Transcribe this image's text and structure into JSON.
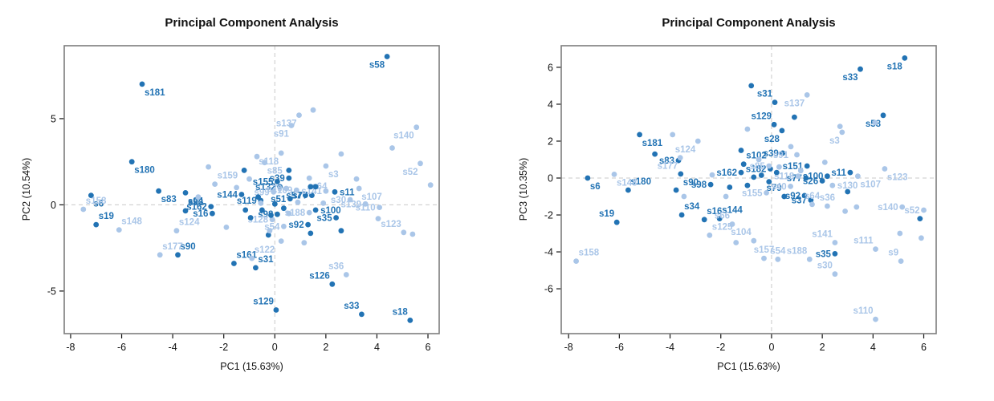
{
  "colors": {
    "dark": "#2273b4",
    "light": "#aac6e8",
    "box": "#7d7d7d",
    "guide": "#c9c9c9",
    "tick": "#111111"
  },
  "chart_data": [
    {
      "type": "scatter",
      "title": "Principal Component Analysis",
      "xlabel": "PC1 (15.63%)",
      "ylabel": "PC2 (10.54%)",
      "x_range": [
        -8.25,
        6.44
      ],
      "y_range": [
        -7.47,
        9.23
      ],
      "x_ticks": [
        -8,
        -6,
        -4,
        -2,
        0,
        2,
        4,
        6
      ],
      "y_ticks": [
        -5,
        0,
        5
      ],
      "guides": {
        "x": 0,
        "y": 0
      },
      "grid": "zero-lines-dashed",
      "legend": "none",
      "points": [
        [
          4.4,
          8.6,
          "d",
          "s58",
          "bl"
        ],
        [
          -5.2,
          7.0,
          "d",
          "s181",
          "br"
        ],
        [
          -5.6,
          2.5,
          "d",
          "s180",
          "br"
        ],
        [
          -7.2,
          0.55,
          "d",
          "s6",
          "br"
        ],
        [
          -7.0,
          -1.15,
          "d",
          "s19",
          "ar"
        ],
        [
          -4.55,
          0.8,
          "d",
          "s83",
          "br"
        ],
        [
          -3.5,
          0.7,
          "d",
          "s94",
          "br"
        ],
        [
          -3.5,
          -0.35,
          "d",
          "s93",
          "ar"
        ],
        [
          -3.8,
          -2.9,
          "d",
          "s90",
          "ar"
        ],
        [
          -2.45,
          -0.5,
          "d",
          "s16",
          "l"
        ],
        [
          -2.5,
          -0.1,
          "d",
          "s162",
          "l"
        ],
        [
          -1.3,
          0.6,
          "d",
          "s144",
          "l"
        ],
        [
          -0.55,
          0.25,
          "d",
          "s119",
          "l"
        ],
        [
          0.6,
          0.35,
          "d",
          "s51",
          "l"
        ],
        [
          0.1,
          1.35,
          "d",
          "s155",
          "l"
        ],
        [
          0.2,
          1.05,
          "d",
          "s132",
          "l"
        ],
        [
          0.55,
          1.55,
          "d",
          "s39",
          "l"
        ],
        [
          1.2,
          0.55,
          "d",
          "s57",
          "l"
        ],
        [
          1.45,
          0.55,
          "d",
          "s77",
          "l"
        ],
        [
          2.35,
          0.75,
          "d",
          "s11",
          "r"
        ],
        [
          1.6,
          -0.3,
          "d",
          "s100",
          "r"
        ],
        [
          2.4,
          -0.75,
          "d",
          "s35",
          "l"
        ],
        [
          1.3,
          -1.15,
          "d",
          "s92",
          "l"
        ],
        [
          0.1,
          -0.55,
          "d",
          "s98",
          "l"
        ],
        [
          -1.6,
          -3.4,
          "d",
          "s161",
          "ar"
        ],
        [
          -0.75,
          -3.65,
          "d",
          "s31",
          "ar"
        ],
        [
          0.05,
          -6.1,
          "d",
          "s129",
          "al"
        ],
        [
          2.25,
          -4.6,
          "d",
          "s126",
          "al"
        ],
        [
          3.4,
          -6.35,
          "d",
          "s33",
          "al"
        ],
        [
          5.3,
          -6.7,
          "d",
          "s18",
          "al"
        ],
        [
          -7.5,
          -0.26,
          "l",
          "s158",
          "ar"
        ],
        [
          -6.1,
          -1.45,
          "l",
          "s148",
          "ar"
        ],
        [
          -3.85,
          -1.5,
          "l",
          "s124",
          "ar"
        ],
        [
          -4.5,
          -2.9,
          "l",
          "s177",
          "ar"
        ],
        [
          -2.35,
          1.2,
          "l",
          "s159",
          "ar"
        ],
        [
          0.25,
          3.0,
          "l",
          "s118",
          "bl"
        ],
        [
          -0.4,
          2.45,
          "l",
          "s85",
          "br"
        ],
        [
          0.95,
          5.2,
          "l",
          "s137",
          "bl"
        ],
        [
          0.65,
          4.6,
          "l",
          "s91",
          "bl"
        ],
        [
          5.55,
          4.5,
          "l",
          "s140",
          "bl"
        ],
        [
          5.7,
          2.4,
          "l",
          "s52",
          "bl"
        ],
        [
          2.0,
          2.25,
          "l",
          "s3",
          "br"
        ],
        [
          1.35,
          1.55,
          "l",
          "s64",
          "br"
        ],
        [
          3.3,
          0.95,
          "l",
          "s107",
          "br"
        ],
        [
          3.55,
          0.05,
          "l",
          "s139",
          "l"
        ],
        [
          4.1,
          -0.15,
          "l",
          "s110",
          "l"
        ],
        [
          2.0,
          0.8,
          "l",
          "s141",
          "l"
        ],
        [
          2.95,
          0.3,
          "l",
          "s30",
          "l"
        ],
        [
          1.35,
          -0.45,
          "l",
          "s188",
          "l"
        ],
        [
          0.35,
          -1.25,
          "l",
          "s54",
          "l"
        ],
        [
          -0.1,
          -0.85,
          "l",
          "s128",
          "l"
        ],
        [
          -0.9,
          -3.1,
          "l",
          "s122",
          "ar"
        ],
        [
          2.8,
          -4.05,
          "l",
          "s36",
          "al"
        ],
        [
          5.05,
          -1.6,
          "l",
          "s123",
          "al"
        ],
        [
          0.45,
          0.95,
          "l",
          "s70",
          "l"
        ],
        [
          0.85,
          0.85,
          "l",
          "s109",
          "l"
        ],
        [
          -0.05,
          0.75,
          "l",
          "s99",
          "l"
        ],
        [
          -1.2,
          2.0,
          "d",
          "",
          ""
        ],
        [
          0.55,
          2.0,
          "d",
          "",
          ""
        ],
        [
          1.4,
          1.05,
          "d",
          "",
          ""
        ],
        [
          1.6,
          1.05,
          "d",
          "",
          ""
        ],
        [
          -0.5,
          -0.3,
          "d",
          "",
          ""
        ],
        [
          -0.15,
          -0.6,
          "d",
          "",
          ""
        ],
        [
          -0.95,
          -0.75,
          "d",
          "",
          ""
        ],
        [
          2.6,
          -1.5,
          "d",
          "",
          ""
        ],
        [
          -0.25,
          -1.75,
          "d",
          "",
          ""
        ],
        [
          1.4,
          -1.65,
          "d",
          "",
          ""
        ],
        [
          -1.15,
          -0.3,
          "d",
          "",
          ""
        ],
        [
          0.0,
          0.05,
          "d",
          "",
          ""
        ],
        [
          0.35,
          -0.2,
          "d",
          "",
          ""
        ],
        [
          -0.65,
          0.45,
          "d",
          "",
          ""
        ],
        [
          -0.7,
          2.8,
          "l",
          "",
          ""
        ],
        [
          1.5,
          5.5,
          "l",
          "",
          ""
        ],
        [
          2.6,
          2.95,
          "l",
          "",
          ""
        ],
        [
          3.2,
          1.5,
          "l",
          "",
          ""
        ],
        [
          4.6,
          3.3,
          "l",
          "",
          ""
        ],
        [
          6.1,
          1.15,
          "l",
          "",
          ""
        ],
        [
          -2.6,
          2.2,
          "l",
          "",
          ""
        ],
        [
          -1.5,
          1.0,
          "l",
          "",
          ""
        ],
        [
          -3.0,
          0.45,
          "l",
          "",
          ""
        ],
        [
          -1.9,
          -1.3,
          "l",
          "",
          ""
        ],
        [
          1.15,
          -2.2,
          "l",
          "",
          ""
        ],
        [
          0.25,
          -2.1,
          "l",
          "",
          ""
        ],
        [
          4.05,
          -0.8,
          "l",
          "",
          ""
        ],
        [
          5.4,
          -1.7,
          "l",
          "",
          ""
        ],
        [
          -0.55,
          0.1,
          "l",
          "",
          ""
        ],
        [
          0.9,
          0.15,
          "l",
          "",
          ""
        ],
        [
          1.9,
          0.1,
          "l",
          "",
          ""
        ],
        [
          0.55,
          -0.5,
          "l",
          "",
          ""
        ],
        [
          -0.2,
          -1.5,
          "l",
          "",
          ""
        ],
        [
          -1.0,
          1.5,
          "l",
          "",
          ""
        ]
      ]
    },
    {
      "type": "scatter",
      "title": "Principal Component Analysis",
      "xlabel": "PC1 (15.63%)",
      "ylabel": "PC3 (10.35%)",
      "x_range": [
        -8.29,
        6.49
      ],
      "y_range": [
        -8.43,
        7.17
      ],
      "x_ticks": [
        -8,
        -6,
        -4,
        -2,
        0,
        2,
        4,
        6
      ],
      "y_ticks": [
        -6,
        -4,
        -2,
        0,
        2,
        4,
        6
      ],
      "guides": {
        "x": 0,
        "y": 0
      },
      "grid": "zero-lines-dashed",
      "legend": "none",
      "points": [
        [
          5.25,
          6.5,
          "d",
          "s18",
          "bl"
        ],
        [
          3.5,
          5.9,
          "d",
          "s33",
          "bl"
        ],
        [
          0.13,
          4.1,
          "d",
          "s31",
          "al"
        ],
        [
          0.1,
          2.9,
          "d",
          "s129",
          "al"
        ],
        [
          4.4,
          3.4,
          "d",
          "s58",
          "bl"
        ],
        [
          -5.2,
          2.35,
          "d",
          "s181",
          "br"
        ],
        [
          -3.67,
          0.95,
          "d",
          "s83",
          "l"
        ],
        [
          -5.65,
          -0.65,
          "d",
          "s180",
          "ar"
        ],
        [
          -7.25,
          0.0,
          "d",
          "s6",
          "br"
        ],
        [
          -6.1,
          -2.4,
          "d",
          "s19",
          "al"
        ],
        [
          -3.58,
          0.22,
          "d",
          "s90",
          "br"
        ],
        [
          -2.4,
          -0.35,
          "d",
          "s98",
          "l"
        ],
        [
          -3.54,
          -2.0,
          "d",
          "s34",
          "ar"
        ],
        [
          -2.65,
          -2.25,
          "d",
          "s16",
          "ar"
        ],
        [
          -2.05,
          -2.2,
          "d",
          "s144",
          "ar"
        ],
        [
          -1.2,
          0.3,
          "d",
          "s162",
          "l"
        ],
        [
          -1.1,
          0.75,
          "d",
          "s102",
          "ar"
        ],
        [
          -0.05,
          0.5,
          "d",
          "s182",
          "l"
        ],
        [
          0.44,
          1.35,
          "d",
          "s39",
          "l"
        ],
        [
          0.41,
          2.57,
          "d",
          "s28",
          "bl"
        ],
        [
          0.5,
          -1.0,
          "d",
          "s79",
          "al"
        ],
        [
          1.4,
          0.65,
          "d",
          "s151",
          "l"
        ],
        [
          1.36,
          0.0,
          "d",
          "s77",
          "l"
        ],
        [
          2.2,
          0.1,
          "d",
          "s100",
          "l"
        ],
        [
          3.1,
          0.3,
          "d",
          "s11",
          "l"
        ],
        [
          2.0,
          -0.15,
          "d",
          "s26",
          "l"
        ],
        [
          1.3,
          -0.95,
          "d",
          "s92",
          "l"
        ],
        [
          1.55,
          -1.2,
          "d",
          "s37",
          "l"
        ],
        [
          2.5,
          -4.1,
          "d",
          "s35",
          "l"
        ],
        [
          -7.7,
          -4.5,
          "l",
          "s158",
          "ar"
        ],
        [
          -6.2,
          0.2,
          "l",
          "s148",
          "br"
        ],
        [
          -2.9,
          2.0,
          "l",
          "s124",
          "bl"
        ],
        [
          -3.6,
          1.1,
          "l",
          "s177",
          "bl"
        ],
        [
          1.4,
          4.5,
          "l",
          "s137",
          "bl"
        ],
        [
          2.78,
          2.48,
          "l",
          "s3",
          "bl"
        ],
        [
          4.46,
          0.5,
          "l",
          "s123",
          "br"
        ],
        [
          2.4,
          -0.4,
          "l",
          "s130",
          "r"
        ],
        [
          3.4,
          0.1,
          "l",
          "s107",
          "br"
        ],
        [
          0.76,
          1.7,
          "l",
          "s91",
          "bl"
        ],
        [
          0.75,
          -0.45,
          "l",
          "s40",
          "l"
        ],
        [
          -0.2,
          -0.8,
          "l",
          "s155",
          "l"
        ],
        [
          -0.1,
          0.65,
          "l",
          "s85",
          "l"
        ],
        [
          1.05,
          0.1,
          "l",
          "s118",
          "l"
        ],
        [
          1.6,
          -1.43,
          "l",
          "s64",
          "a"
        ],
        [
          2.2,
          -1.52,
          "l",
          "s36",
          "a"
        ],
        [
          -0.7,
          -3.4,
          "l",
          "s104",
          "al"
        ],
        [
          -2.44,
          -3.1,
          "l",
          "s125",
          "ar"
        ],
        [
          -1.55,
          -2.5,
          "l",
          "s66",
          "al"
        ],
        [
          -0.3,
          -4.35,
          "l",
          "s157",
          "a"
        ],
        [
          0.25,
          -4.4,
          "l",
          "s54",
          "a"
        ],
        [
          1.5,
          -4.4,
          "l",
          "s188",
          "al"
        ],
        [
          2.5,
          -3.5,
          "l",
          "s141",
          "al"
        ],
        [
          4.1,
          -3.85,
          "l",
          "s111",
          "al"
        ],
        [
          5.1,
          -4.5,
          "l",
          "s9",
          "al"
        ],
        [
          2.5,
          -5.2,
          "l",
          "s30",
          "al"
        ],
        [
          4.1,
          -7.65,
          "l",
          "s110",
          "al"
        ],
        [
          5.15,
          -1.57,
          "l",
          "s140",
          "l"
        ],
        [
          6.0,
          -1.74,
          "l",
          "s52",
          "l"
        ],
        [
          -0.8,
          5.0,
          "d",
          "",
          ""
        ],
        [
          0.9,
          3.3,
          "d",
          "",
          ""
        ],
        [
          -4.6,
          1.3,
          "d",
          "",
          ""
        ],
        [
          -3.76,
          -0.65,
          "d",
          "",
          ""
        ],
        [
          -0.95,
          -0.4,
          "d",
          "",
          ""
        ],
        [
          -1.65,
          -0.5,
          "d",
          "",
          ""
        ],
        [
          -1.2,
          1.5,
          "d",
          "",
          ""
        ],
        [
          3.0,
          -0.74,
          "d",
          "",
          ""
        ],
        [
          5.85,
          -2.2,
          "d",
          "",
          ""
        ],
        [
          -0.4,
          0.15,
          "d",
          "",
          ""
        ],
        [
          -0.1,
          -0.2,
          "d",
          "",
          ""
        ],
        [
          0.2,
          0.3,
          "d",
          "",
          ""
        ],
        [
          -0.7,
          0.05,
          "d",
          "",
          ""
        ],
        [
          -0.95,
          2.65,
          "l",
          "",
          ""
        ],
        [
          2.7,
          2.8,
          "l",
          "",
          ""
        ],
        [
          4.08,
          3.0,
          "l",
          "",
          ""
        ],
        [
          -3.9,
          2.35,
          "l",
          "",
          ""
        ],
        [
          1.0,
          1.26,
          "l",
          "",
          ""
        ],
        [
          2.1,
          0.85,
          "l",
          "",
          ""
        ],
        [
          3.35,
          -1.57,
          "l",
          "",
          ""
        ],
        [
          2.9,
          -1.8,
          "l",
          "",
          ""
        ],
        [
          5.9,
          -3.25,
          "l",
          "",
          ""
        ],
        [
          5.06,
          -3.0,
          "l",
          "",
          ""
        ],
        [
          -1.4,
          -3.5,
          "l",
          "",
          ""
        ],
        [
          -3.45,
          -1.0,
          "l",
          "",
          ""
        ],
        [
          -1.8,
          -1.0,
          "l",
          "",
          ""
        ],
        [
          0.3,
          0.6,
          "l",
          "",
          ""
        ],
        [
          -0.5,
          1.0,
          "l",
          "",
          ""
        ],
        [
          1.15,
          0.4,
          "l",
          "",
          ""
        ],
        [
          -2.34,
          0.17,
          "l",
          "",
          ""
        ]
      ]
    }
  ]
}
